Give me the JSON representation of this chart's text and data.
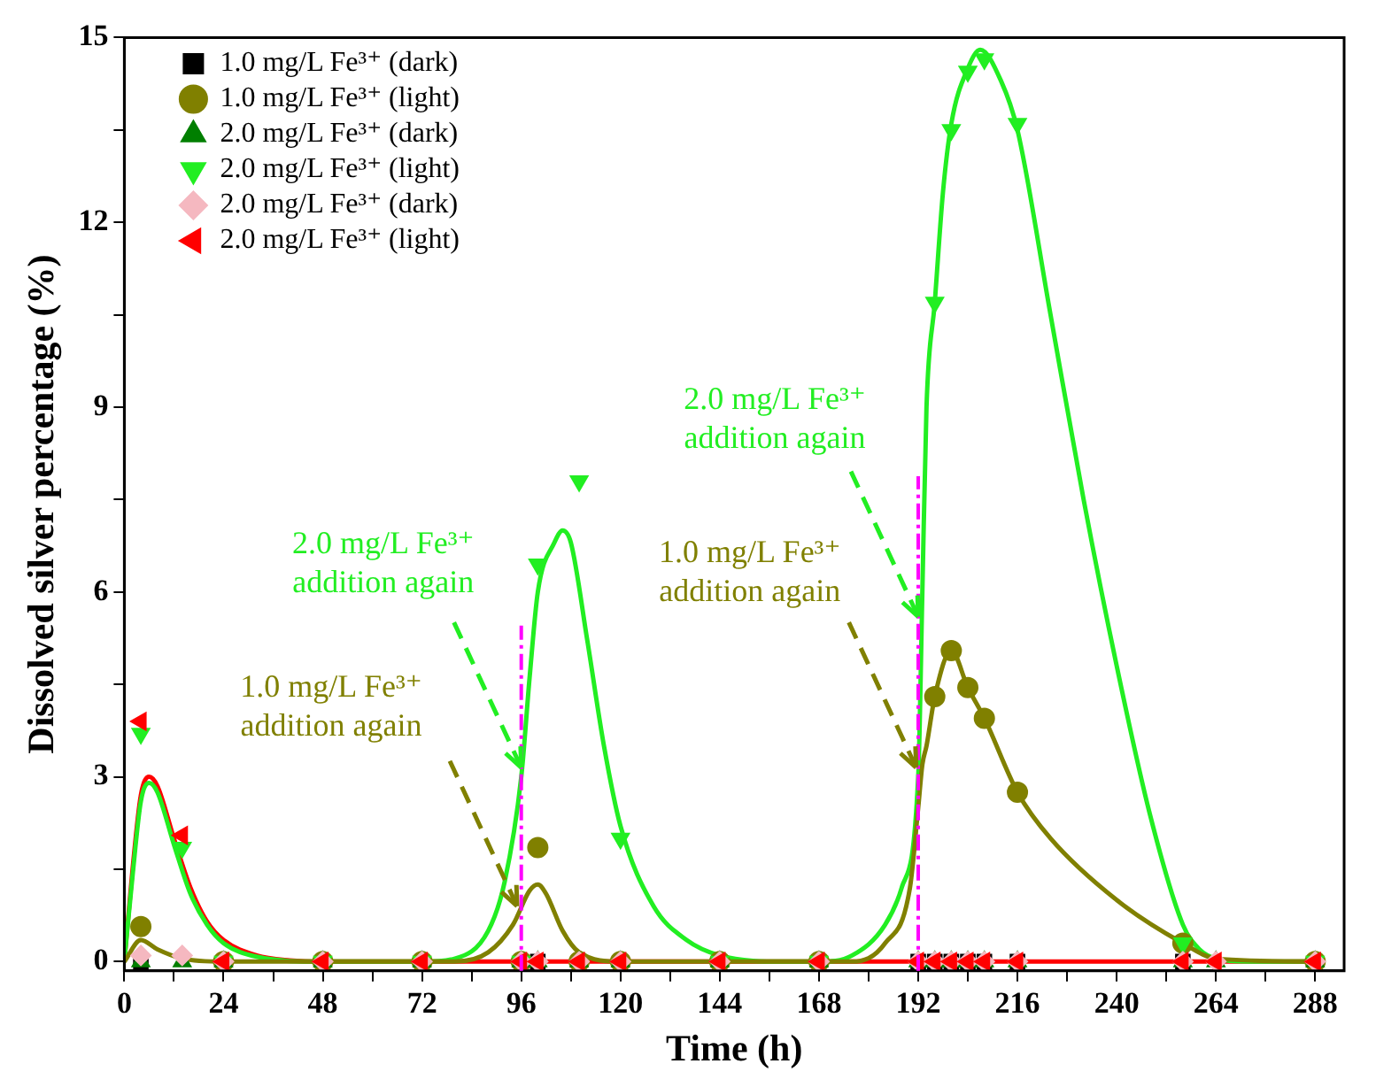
{
  "chart_data": {
    "type": "scatter",
    "xlabel": "Time (h)",
    "ylabel": "Dissolved silver percentage (%)",
    "x": [
      4,
      14,
      24,
      48,
      72,
      96,
      100,
      110,
      120,
      144,
      168,
      192,
      196,
      200,
      204,
      208,
      216,
      256,
      264,
      288
    ],
    "xlim": [
      0,
      295
    ],
    "ylim": [
      -0.15,
      15
    ],
    "xticks": [
      0,
      {
        "value": 12,
        "label": null
      },
      24,
      {
        "value": 36,
        "label": null
      },
      48,
      {
        "value": 60,
        "label": null
      },
      72,
      {
        "value": 84,
        "label": null
      },
      96,
      {
        "value": 108,
        "label": null
      },
      120,
      {
        "value": 132,
        "label": null
      },
      144,
      {
        "value": 156,
        "label": null
      },
      168,
      {
        "value": 180,
        "label": null
      },
      192,
      {
        "value": 204,
        "label": null
      },
      216,
      {
        "value": 228,
        "label": null
      },
      240,
      {
        "value": 252,
        "label": null
      },
      264,
      {
        "value": 276,
        "label": null
      },
      288
    ],
    "yticks": [
      0,
      {
        "value": 1.5,
        "label": null
      },
      3,
      {
        "value": 4.5,
        "label": null
      },
      6,
      {
        "value": 7.5,
        "label": null
      },
      9,
      {
        "value": 10.5,
        "label": null
      },
      12,
      {
        "value": 13.5,
        "label": null
      },
      15
    ],
    "grid": false,
    "legend": "top left",
    "series": [
      {
        "name": "1.0 mg/L Fe³⁺ (dark)",
        "color": "#000000",
        "marker": "square",
        "values": [
          0,
          null,
          null,
          null,
          null,
          null,
          0,
          null,
          null,
          null,
          null,
          0,
          0,
          0,
          0,
          0,
          0,
          0,
          null,
          null
        ]
      },
      {
        "name": "1.0 mg/L Fe³⁺ (light)",
        "color": "#808000",
        "marker": "circle",
        "values": [
          0.57,
          null,
          0,
          0,
          0,
          0,
          1.85,
          0,
          0,
          0,
          0,
          null,
          4.3,
          5.05,
          4.45,
          3.95,
          2.75,
          0.3,
          null,
          0
        ]
      },
      {
        "name": "2.0 mg/L Fe³⁺ (dark)",
        "color": "#007f00",
        "marker": "triangle",
        "values": [
          0,
          0,
          0,
          0,
          0,
          0,
          0,
          0,
          0,
          0,
          0,
          0,
          0,
          0,
          0,
          0,
          0,
          0,
          0,
          0
        ]
      },
      {
        "name": "2.0 mg/L Fe³⁺ (light)",
        "color": "#22ee22",
        "marker": "triangle",
        "values": [
          3.7,
          1.85,
          0,
          0,
          0,
          0,
          6.45,
          7.8,
          2.0,
          0,
          0,
          null,
          10.7,
          13.5,
          14.45,
          14.65,
          13.6,
          0.3,
          null,
          0
        ]
      },
      {
        "name": "2.0 mg/L Fe³⁺ (dark)",
        "color": "#f5b8c0",
        "marker": "diamond",
        "values": [
          0.1,
          0.1,
          0,
          0,
          0,
          0,
          0,
          0,
          0,
          0,
          0,
          0,
          0,
          0,
          0,
          0,
          0,
          0,
          0,
          0
        ]
      },
      {
        "name": "2.0 mg/L Fe³⁺ (light)",
        "color": "#ff0000",
        "marker": "triangle",
        "values": [
          3.9,
          2.05,
          0,
          0,
          0,
          0,
          0,
          0,
          0,
          0,
          0,
          0,
          0,
          0,
          0,
          0,
          0,
          0,
          0,
          0
        ]
      },
      {
        "type": "line",
        "color": "#808000",
        "marker": "none",
        "x": [
          0,
          4,
          8,
          14,
          24,
          80,
          88,
          94,
          98,
          100,
          102,
          106,
          110,
          120,
          176,
          184,
          190,
          192,
          193,
          194,
          196,
          200,
          204,
          208,
          216,
          224,
          240,
          256,
          264,
          288
        ],
        "values": [
          0,
          0.35,
          0.2,
          0.05,
          0,
          0,
          0.15,
          0.6,
          1.15,
          1.25,
          1.1,
          0.5,
          0.15,
          0,
          0,
          0.3,
          1.2,
          2.5,
          3.2,
          3.5,
          4.3,
          5.05,
          4.45,
          3.95,
          2.75,
          2.0,
          1.0,
          0.3,
          0.05,
          0
        ]
      },
      {
        "type": "line",
        "color": "#22ee22",
        "marker": "none",
        "x": [
          0,
          2,
          4,
          6,
          8,
          12,
          16,
          20,
          24,
          32,
          48,
          72,
          80,
          88,
          92,
          96,
          98,
          100,
          104,
          106,
          108,
          112,
          116,
          120,
          128,
          136,
          144,
          160,
          168,
          176,
          184,
          188,
          192,
          193,
          194,
          196,
          198,
          200,
          204,
          207,
          212,
          216,
          224,
          232,
          240,
          248,
          256,
          260,
          264,
          272,
          288
        ],
        "values": [
          0,
          1.4,
          2.6,
          2.9,
          2.75,
          1.9,
          1.1,
          0.6,
          0.3,
          0.08,
          0,
          0,
          0.05,
          0.5,
          1.3,
          3.0,
          4.6,
          6.0,
          6.8,
          7.0,
          6.8,
          5.2,
          3.5,
          2.2,
          0.9,
          0.35,
          0.1,
          0,
          0,
          0.1,
          0.6,
          1.2,
          3.0,
          6.0,
          9.0,
          10.7,
          12.5,
          13.6,
          14.5,
          14.8,
          14.3,
          13.5,
          10.5,
          7.5,
          4.8,
          2.4,
          0.6,
          0.2,
          0.05,
          0,
          0
        ]
      },
      {
        "type": "line",
        "color": "#ff0000",
        "marker": "none",
        "x": [
          0,
          2,
          4,
          6,
          8,
          12,
          16,
          20,
          24,
          32,
          40,
          48,
          288
        ],
        "values": [
          0,
          1.5,
          2.7,
          3.0,
          2.85,
          2.0,
          1.2,
          0.65,
          0.35,
          0.1,
          0.02,
          0,
          0
        ]
      }
    ],
    "ref_lines": [
      {
        "axis": "x",
        "value": 96,
        "color": "#ff00ff",
        "line_style": "dashed"
      },
      {
        "axis": "x",
        "value": 192,
        "color": "#ff00ff",
        "line_style": "dashed"
      }
    ],
    "annotations": [
      {
        "text": "2.0 mg/L Fe³⁺\naddition again",
        "x": 96,
        "y": 3.15
      },
      {
        "text": "1.0 mg/L Fe³⁺\naddition again",
        "x": 95,
        "y": 0.9
      },
      {
        "text": "2.0 mg/L Fe³⁺\naddition again",
        "x": 192,
        "y": 5.6
      },
      {
        "text": "1.0 mg/L Fe³⁺\naddition again",
        "x": 191.5,
        "y": 3.15
      }
    ]
  }
}
